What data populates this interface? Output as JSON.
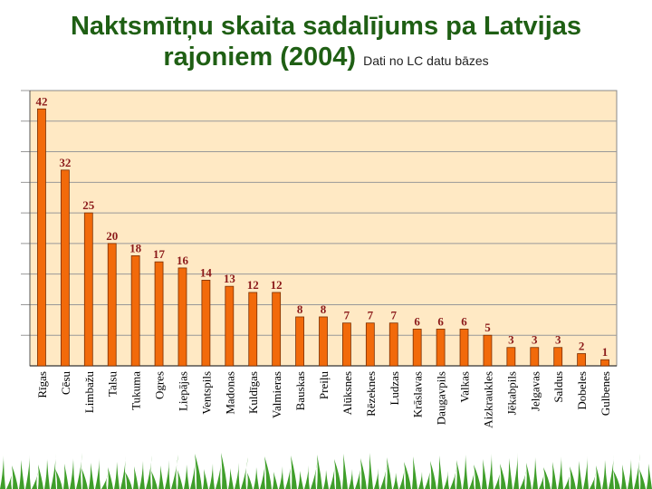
{
  "title_line1": "Naktsmītņu skaita sadalījums pa Latvijas",
  "title_line2": "rajoniem (2004)",
  "subtitle": "Dati no LC datu bāzes",
  "colors": {
    "bar": "#f26a0a",
    "bar_edge": "#7a2e00",
    "plot_bg": "#ffe9c4",
    "grid": "#999999",
    "label": "#8b1a1a",
    "title": "#1f5f14",
    "grass": "#3f9e2a"
  },
  "chart_data": {
    "type": "bar",
    "categories": [
      "Rīgas",
      "Cēsu",
      "Limbažu",
      "Talsu",
      "Tukuma",
      "Ogres",
      "Liepājas",
      "Ventspils",
      "Madonas",
      "Kuldīgas",
      "Valmieras",
      "Bauskas",
      "Preiļu",
      "Alūksnes",
      "Rēzeknes",
      "Ludzas",
      "Krāslavas",
      "Daugavpils",
      "Valkas",
      "Aizkraukles",
      "Jēkabpils",
      "Jelgavas",
      "Saldus",
      "Dobeles",
      "Gulbenes"
    ],
    "values": [
      42,
      32,
      25,
      20,
      18,
      17,
      16,
      14,
      13,
      12,
      12,
      8,
      8,
      7,
      7,
      7,
      6,
      6,
      6,
      5,
      3,
      3,
      3,
      2,
      1
    ],
    "ylim": [
      0,
      45
    ],
    "grid": true,
    "data_labels": true
  }
}
